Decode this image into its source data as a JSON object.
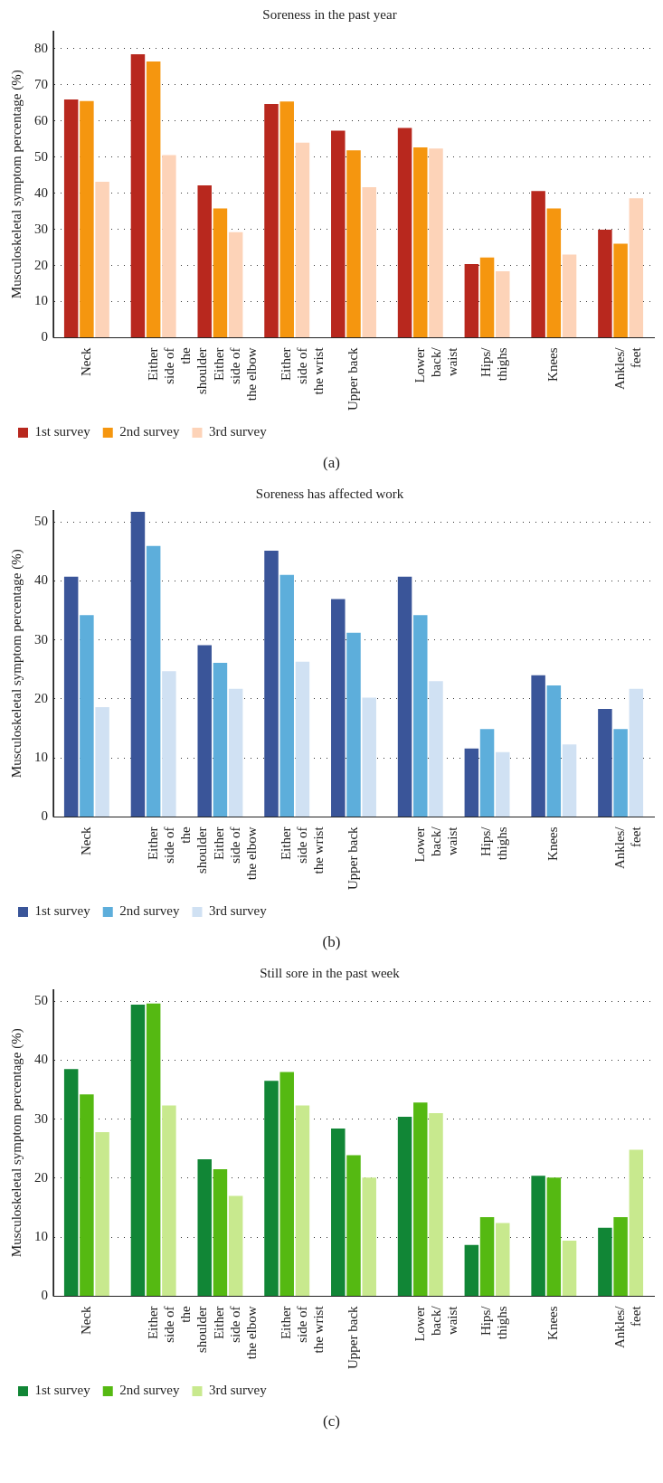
{
  "chart_data": [
    {
      "type": "bar",
      "title": "Soreness in the past year",
      "ylabel": "Musculoskeletal symptom percentage (%)",
      "categories": [
        "Neck",
        "Either side of the shoulder",
        "Either side of the elbow",
        "Either side of the wrist",
        "Upper back",
        "Lower back/ waist",
        "Hips/ thighs",
        "Knees",
        "Ankles/ feet"
      ],
      "series": [
        {
          "name": "1st survey",
          "color": "#b8281e",
          "values": [
            66,
            78.5,
            42.2,
            64.7,
            57.3,
            58.1,
            20.4,
            40.6,
            29.9
          ]
        },
        {
          "name": "2nd survey",
          "color": "#f5960f",
          "values": [
            65.5,
            76.5,
            35.8,
            65.4,
            51.9,
            52.7,
            22.2,
            35.8,
            26
          ]
        },
        {
          "name": "3rd survey",
          "color": "#fdd3b8",
          "values": [
            43.2,
            50.6,
            29.2,
            54,
            41.7,
            52.4,
            18.4,
            23,
            38.6
          ]
        }
      ],
      "ylim": [
        0,
        85
      ],
      "yticks": [
        0,
        10,
        20,
        30,
        40,
        50,
        60,
        70,
        80
      ],
      "grid": "y",
      "legend": "bottom left",
      "annotations": [
        "(a)"
      ]
    },
    {
      "type": "bar",
      "title": "Soreness has affected work",
      "ylabel": "Musculoskeletal symptom percentage (%)",
      "categories": [
        "Neck",
        "Either side of the shoulder",
        "Either side of the elbow",
        "Either side of the wrist",
        "Upper back",
        "Lower back/ waist",
        "Hips/ thighs",
        "Knees",
        "Ankles/ feet"
      ],
      "series": [
        {
          "name": "1st survey",
          "color": "#3a5599",
          "values": [
            40.7,
            51.7,
            29.1,
            45.1,
            36.9,
            40.7,
            11.6,
            24,
            18.3
          ]
        },
        {
          "name": "2nd survey",
          "color": "#5daedb",
          "values": [
            34.2,
            45.9,
            26.1,
            41,
            31.2,
            34.2,
            14.9,
            22.3,
            14.9
          ]
        },
        {
          "name": "3rd survey",
          "color": "#d0e1f3",
          "values": [
            18.6,
            24.7,
            21.7,
            26.3,
            20.2,
            23,
            11,
            12.3,
            21.7
          ]
        }
      ],
      "ylim": [
        0,
        52
      ],
      "yticks": [
        0,
        10,
        20,
        30,
        40,
        50
      ],
      "grid": "y",
      "legend": "bottom left",
      "annotations": [
        "(b)"
      ]
    },
    {
      "type": "bar",
      "title": "Still sore in the past week",
      "ylabel": "Musculoskeletal symptom percentage (%)",
      "categories": [
        "Neck",
        "Either side of the shoulder",
        "Either side of the elbow",
        "Either side of the wrist",
        "Upper back",
        "Lower back/ waist",
        "Hips/ thighs",
        "Knees",
        "Ankles/ feet"
      ],
      "series": [
        {
          "name": "1st survey",
          "color": "#118636",
          "values": [
            38.5,
            49.4,
            23.2,
            36.5,
            28.4,
            30.4,
            8.7,
            20.4,
            11.6
          ]
        },
        {
          "name": "2nd survey",
          "color": "#55b912",
          "values": [
            34.2,
            49.6,
            21.5,
            38,
            23.9,
            32.8,
            13.4,
            20.1,
            13.4
          ]
        },
        {
          "name": "3rd survey",
          "color": "#c8e98e",
          "values": [
            27.8,
            32.3,
            17,
            32.3,
            20.1,
            31,
            12.4,
            9.4,
            24.8
          ]
        }
      ],
      "ylim": [
        0,
        52
      ],
      "yticks": [
        0,
        10,
        20,
        30,
        40,
        50
      ],
      "grid": "y",
      "legend": "bottom left",
      "annotations": [
        "(c)"
      ]
    }
  ]
}
